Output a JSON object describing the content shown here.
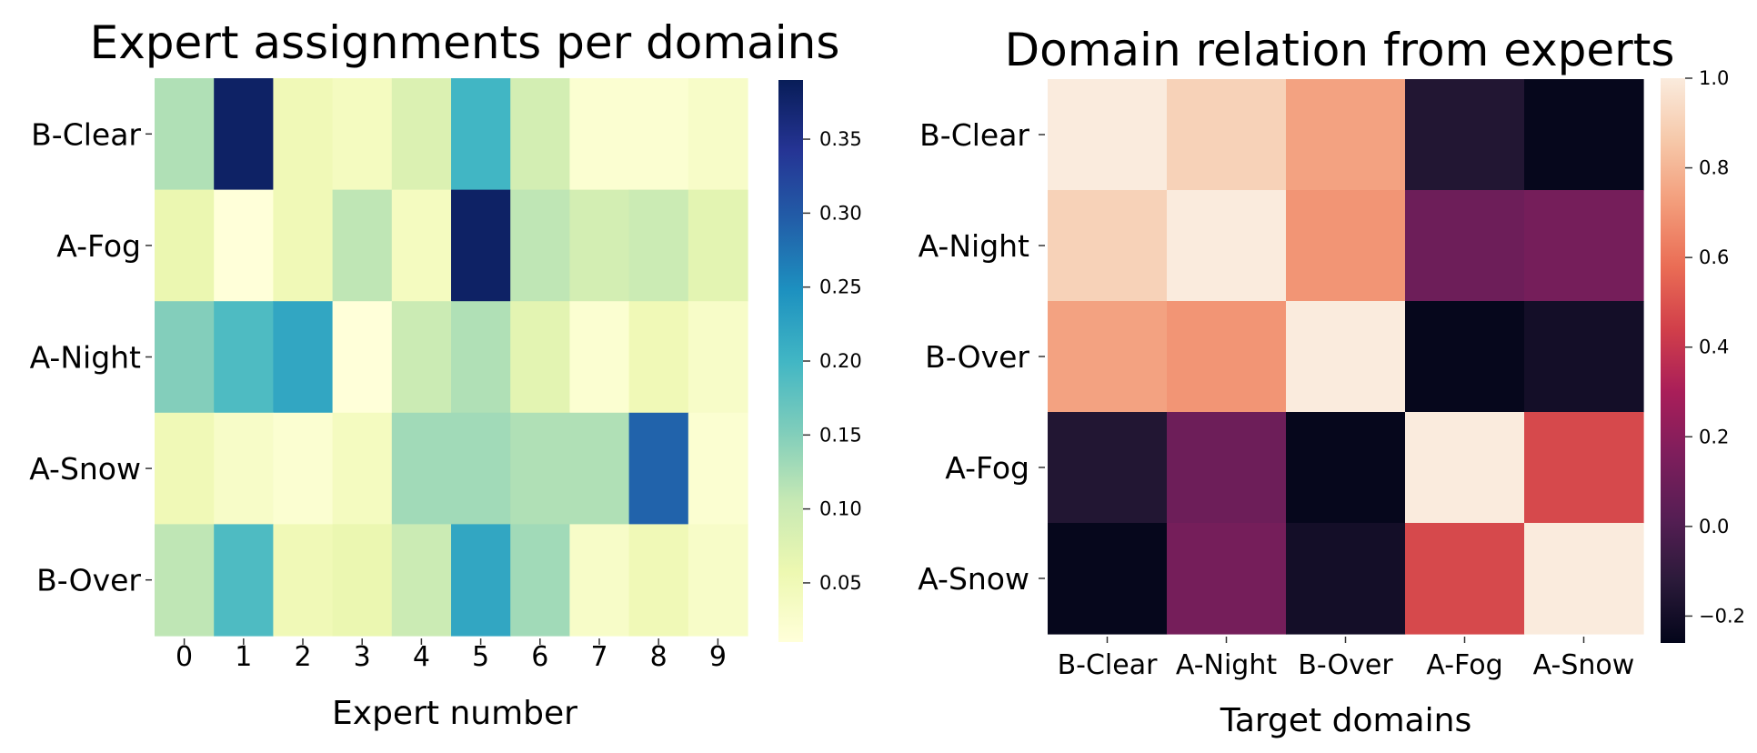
{
  "chart_data": [
    {
      "type": "heatmap",
      "title": "Expert assignments per domains",
      "xlabel": "Expert number",
      "ylabel": "",
      "x_categories": [
        "0",
        "1",
        "2",
        "3",
        "4",
        "5",
        "6",
        "7",
        "8",
        "9"
      ],
      "y_categories": [
        "B-Clear",
        "A-Fog",
        "A-Night",
        "A-Snow",
        "B-Over"
      ],
      "values": [
        [
          0.12,
          0.38,
          0.05,
          0.04,
          0.08,
          0.2,
          0.09,
          0.02,
          0.02,
          0.03
        ],
        [
          0.06,
          0.01,
          0.05,
          0.11,
          0.04,
          0.38,
          0.11,
          0.09,
          0.1,
          0.07
        ],
        [
          0.15,
          0.19,
          0.22,
          0.01,
          0.1,
          0.12,
          0.07,
          0.02,
          0.05,
          0.03
        ],
        [
          0.05,
          0.03,
          0.02,
          0.04,
          0.13,
          0.13,
          0.12,
          0.12,
          0.29,
          0.02
        ],
        [
          0.11,
          0.19,
          0.05,
          0.06,
          0.1,
          0.22,
          0.13,
          0.03,
          0.05,
          0.03
        ]
      ],
      "colormap": "YlGnBu",
      "vmin": 0.01,
      "vmax": 0.39,
      "colorbar_ticks": [
        "0.05",
        "0.10",
        "0.15",
        "0.20",
        "0.25",
        "0.30",
        "0.35"
      ],
      "colorbar_tick_values": [
        0.05,
        0.1,
        0.15,
        0.2,
        0.25,
        0.3,
        0.35
      ]
    },
    {
      "type": "heatmap",
      "title": "Domain relation from experts",
      "xlabel": "Target domains",
      "ylabel": "",
      "x_categories": [
        "B-Clear",
        "A-Night",
        "B-Over",
        "A-Fog",
        "A-Snow"
      ],
      "y_categories": [
        "B-Clear",
        "A-Night",
        "B-Over",
        "A-Fog",
        "A-Snow"
      ],
      "values": [
        [
          1.0,
          0.9,
          0.74,
          -0.15,
          -0.25
        ],
        [
          0.9,
          1.0,
          0.7,
          0.1,
          0.13
        ],
        [
          0.74,
          0.7,
          1.0,
          -0.25,
          -0.2
        ],
        [
          -0.15,
          0.1,
          -0.25,
          1.0,
          0.47
        ],
        [
          -0.25,
          0.13,
          -0.2,
          0.47,
          1.0
        ]
      ],
      "colormap": "rocket",
      "vmin": -0.26,
      "vmax": 1.0,
      "colorbar_ticks": [
        "1.0",
        "0.8",
        "0.6",
        "0.4",
        "0.2",
        "0.0",
        "−0.2"
      ],
      "colorbar_tick_values": [
        1.0,
        0.8,
        0.6,
        0.4,
        0.2,
        0.0,
        -0.2
      ]
    }
  ]
}
